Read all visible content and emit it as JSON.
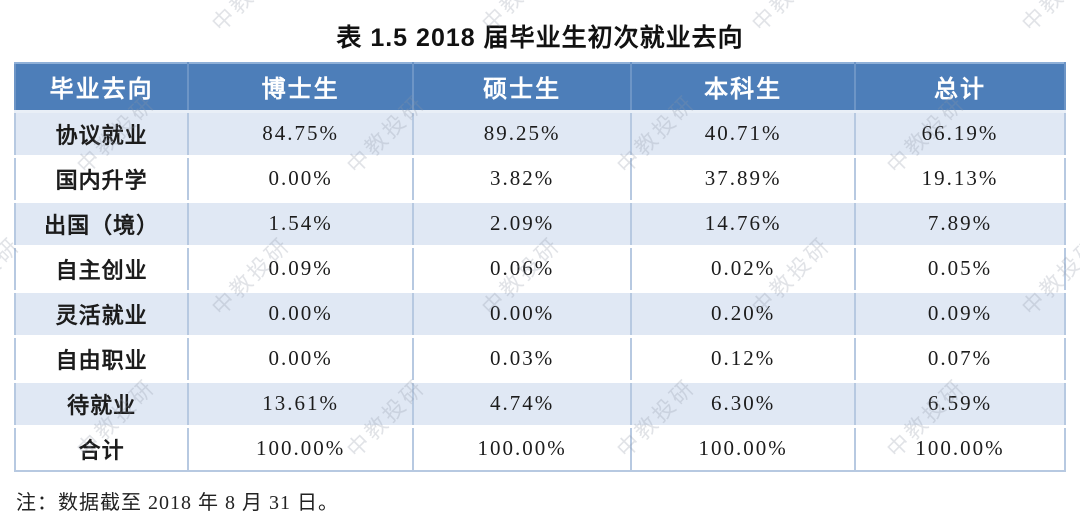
{
  "title": "表 1.5 2018 届毕业生初次就业去向",
  "table": {
    "columns": [
      "毕业去向",
      "博士生",
      "硕士生",
      "本科生",
      "总计"
    ],
    "rows": [
      {
        "label": "协议就业",
        "values": [
          "84.75%",
          "89.25%",
          "40.71%",
          "66.19%"
        ]
      },
      {
        "label": "国内升学",
        "values": [
          "0.00%",
          "3.82%",
          "37.89%",
          "19.13%"
        ]
      },
      {
        "label": "出国（境）",
        "values": [
          "1.54%",
          "2.09%",
          "14.76%",
          "7.89%"
        ]
      },
      {
        "label": "自主创业",
        "values": [
          "0.09%",
          "0.06%",
          "0.02%",
          "0.05%"
        ]
      },
      {
        "label": "灵活就业",
        "values": [
          "0.00%",
          "0.00%",
          "0.20%",
          "0.09%"
        ]
      },
      {
        "label": "自由职业",
        "values": [
          "0.00%",
          "0.03%",
          "0.12%",
          "0.07%"
        ]
      },
      {
        "label": "待就业",
        "values": [
          "13.61%",
          "4.74%",
          "6.30%",
          "6.59%"
        ]
      },
      {
        "label": "合计",
        "values": [
          "100.00%",
          "100.00%",
          "100.00%",
          "100.00%"
        ]
      }
    ]
  },
  "note": "注：数据截至 2018 年 8 月 31 日。",
  "watermark": {
    "text": "中教投研"
  },
  "colors": {
    "header_bg": "#4d7eb9",
    "header_text": "#ffffff",
    "header_divider": "#6d95c6",
    "row_alt_bg": "#e0e8f4",
    "row_bg": "#ffffff",
    "cell_border": "#b7c9e1",
    "watermark": "#8d95a5",
    "title_text": "#111111",
    "body_text": "#1c1c1c"
  },
  "chart_data": {
    "type": "table",
    "title": "表 1.5 2018 届毕业生初次就业去向",
    "categories": [
      "协议就业",
      "国内升学",
      "出国（境）",
      "自主创业",
      "灵活就业",
      "自由职业",
      "待就业",
      "合计"
    ],
    "series": [
      {
        "name": "博士生",
        "values": [
          84.75,
          0.0,
          1.54,
          0.09,
          0.0,
          0.0,
          13.61,
          100.0
        ]
      },
      {
        "name": "硕士生",
        "values": [
          89.25,
          3.82,
          2.09,
          0.06,
          0.0,
          0.03,
          4.74,
          100.0
        ]
      },
      {
        "name": "本科生",
        "values": [
          40.71,
          37.89,
          14.76,
          0.02,
          0.2,
          0.12,
          6.3,
          100.0
        ]
      },
      {
        "name": "总计",
        "values": [
          66.19,
          19.13,
          7.89,
          0.05,
          0.09,
          0.07,
          6.59,
          100.0
        ]
      }
    ],
    "unit": "%",
    "footnote": "注：数据截至 2018 年 8 月 31 日。"
  }
}
